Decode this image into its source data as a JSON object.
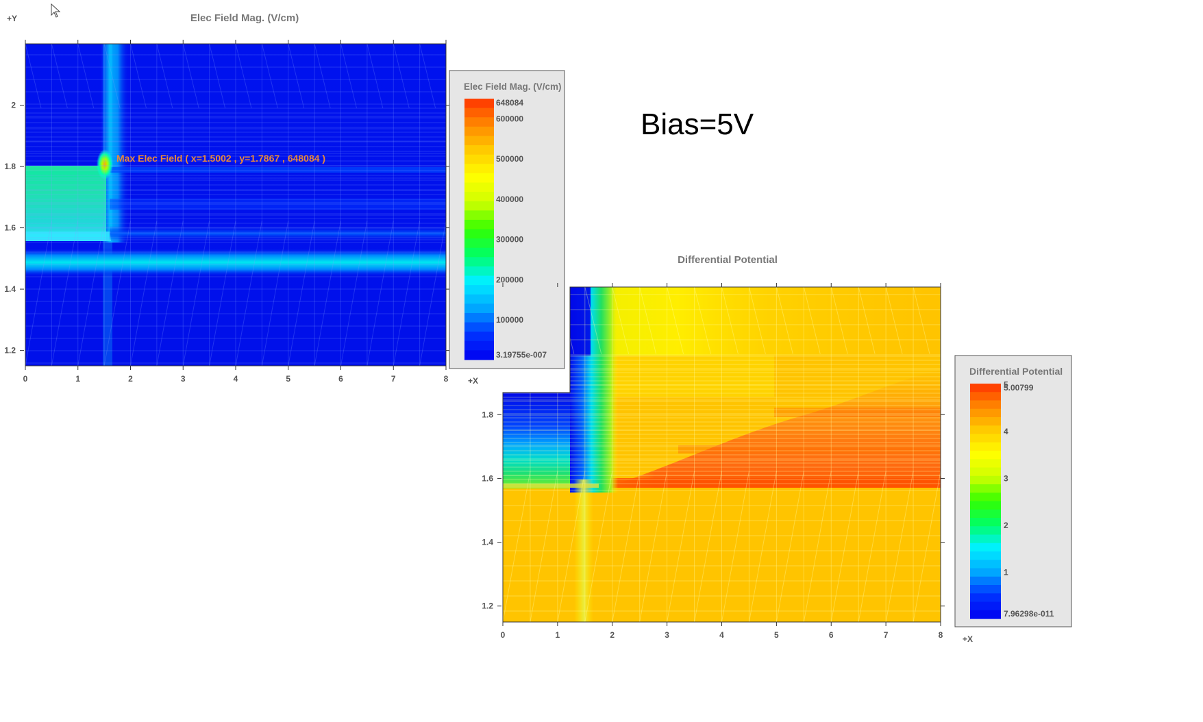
{
  "annotation": {
    "bias_label": "Bias=5V"
  },
  "chart_data": [
    {
      "type": "heatmap",
      "title": "Elec Field Mag. (V/cm)",
      "x_axis_label": "+X",
      "y_axis_label": "+Y",
      "x_ticks": [
        "0",
        "1",
        "2",
        "3",
        "4",
        "5",
        "6",
        "7",
        "8"
      ],
      "y_ticks": [
        "1.2",
        "1.4",
        "1.6",
        "1.8",
        "2"
      ],
      "xlim": [
        0,
        8
      ],
      "ylim": [
        1.15,
        2.2
      ],
      "legend": {
        "title": "Elec Field Mag. (V/cm)",
        "max_label": "648084",
        "min_label": "3.19755e-007",
        "tick_labels": [
          "600000",
          "500000",
          "400000",
          "300000",
          "200000",
          "100000"
        ],
        "tick_values": [
          600000,
          500000,
          400000,
          300000,
          200000,
          100000
        ],
        "min": 0,
        "max": 648084,
        "colors": [
          "#0000f0",
          "#0033ff",
          "#00aaff",
          "#00f0ff",
          "#00ff66",
          "#33ff00",
          "#ccff00",
          "#ffff00",
          "#ffcc00",
          "#ff8800",
          "#ff3300"
        ]
      },
      "max_annotation": {
        "text": "Max Elec Field ( x=1.5002 , y=1.7867 , 648084 )",
        "x": 1.5002,
        "y": 1.7867,
        "value": 648084,
        "color": "#e8893a"
      }
    },
    {
      "type": "heatmap",
      "title": "Differential Potential",
      "x_axis_label": "+X",
      "x_ticks": [
        "0",
        "1",
        "2",
        "3",
        "4",
        "5",
        "6",
        "7",
        "8"
      ],
      "y_ticks": [
        "1.2",
        "1.4",
        "1.6",
        "1.8"
      ],
      "xlim": [
        0,
        8
      ],
      "ylim": [
        1.15,
        2.2
      ],
      "legend": {
        "title": "Differential Potential",
        "max_label": "5.00799",
        "min_label": "7.96298e-011",
        "tick_labels": [
          "5",
          "4",
          "3",
          "2",
          "1"
        ],
        "tick_values": [
          5,
          4,
          3,
          2,
          1
        ],
        "min": 0,
        "max": 5.00799,
        "colors": [
          "#0000f0",
          "#0033ff",
          "#00aaff",
          "#00f0ff",
          "#00ff66",
          "#33ff00",
          "#ccff00",
          "#ffff00",
          "#ffcc00",
          "#ff8800",
          "#ff3300"
        ]
      }
    }
  ]
}
